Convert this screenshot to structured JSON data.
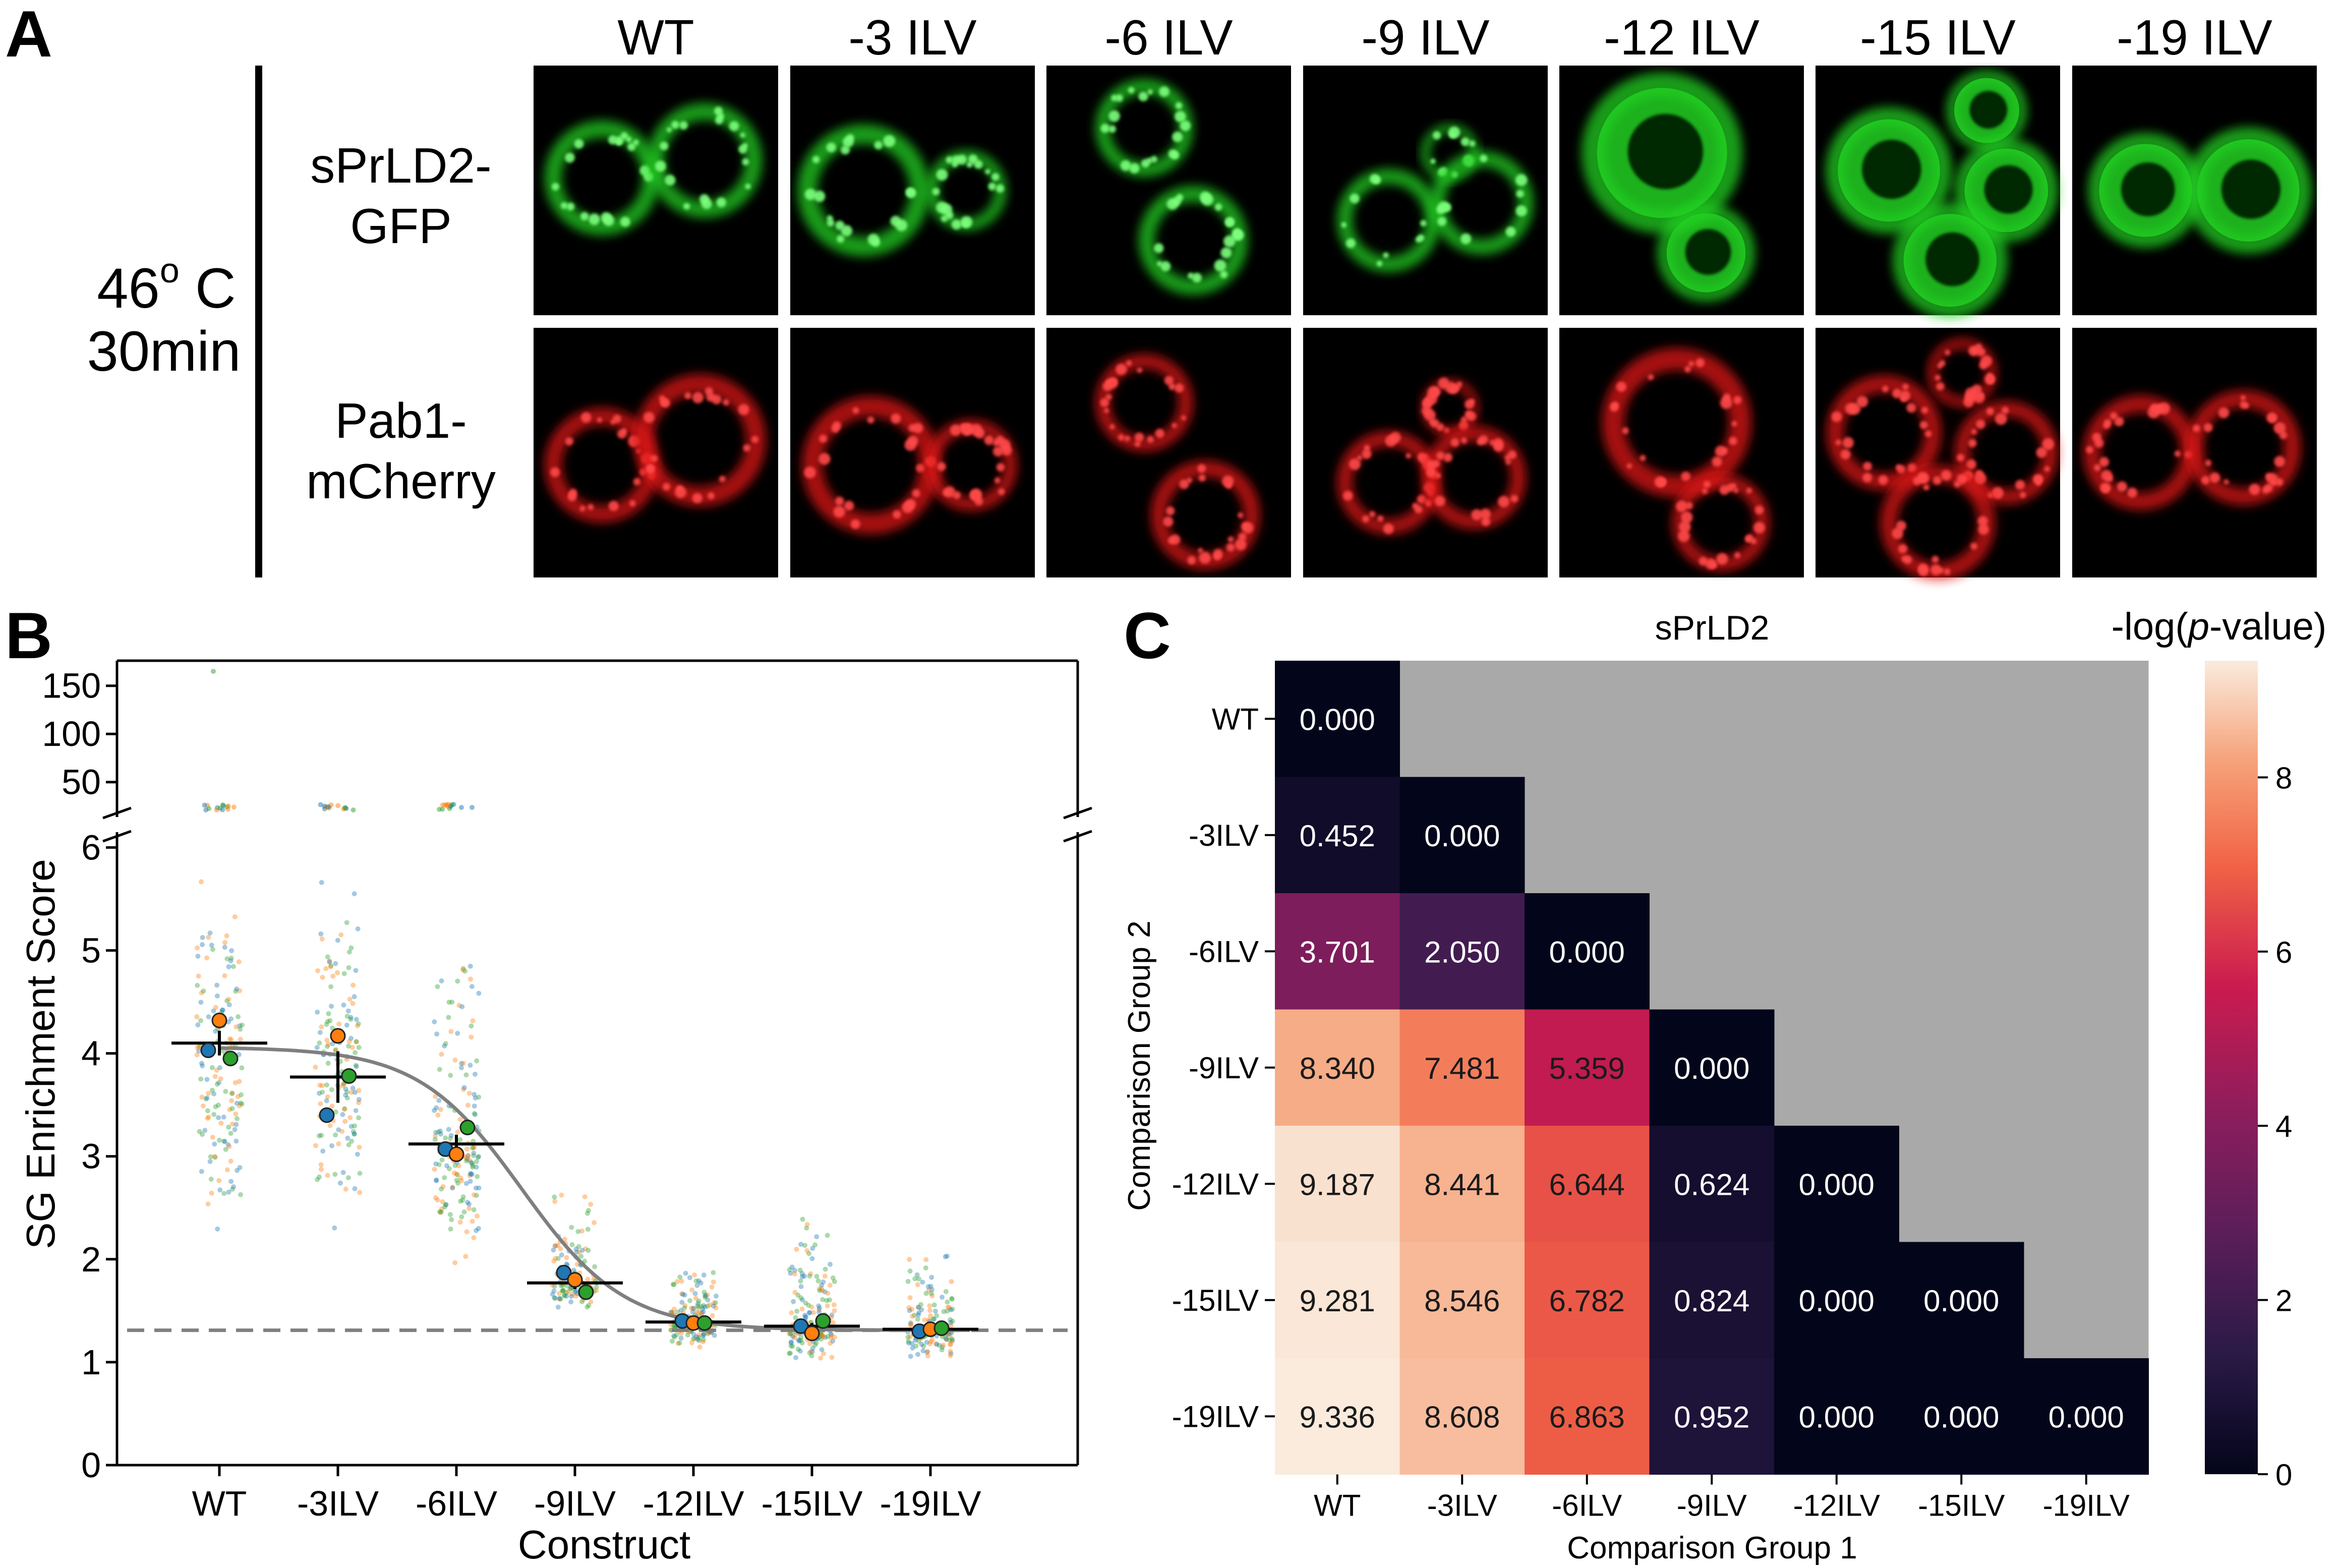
{
  "panel_a": {
    "letter": "A",
    "condition_line1_main": "46",
    "condition_line1_sup": "o",
    "condition_line1_unit": " C",
    "condition_line2": "30min",
    "row1_label_line1": "sPrLD2-",
    "row1_label_line2": "GFP",
    "row2_label_line1": "Pab1-",
    "row2_label_line2": "mCherry",
    "columns": [
      "WT",
      "-3 ILV",
      "-6 ILV",
      "-9 ILV",
      "-12 ILV",
      "-15 ILV",
      "-19 ILV"
    ],
    "colors": {
      "gfp": "#22d022",
      "mcherry": "#e01818",
      "background": "#000000"
    },
    "row1_micrographs": [
      {
        "cells": [
          [
            0.28,
            0.45,
            0.2
          ],
          [
            0.7,
            0.38,
            0.2
          ]
        ],
        "puncta": 0.8
      },
      {
        "cells": [
          [
            0.3,
            0.5,
            0.23
          ],
          [
            0.72,
            0.5,
            0.14
          ]
        ],
        "puncta": 0.85
      },
      {
        "cells": [
          [
            0.4,
            0.25,
            0.17
          ],
          [
            0.6,
            0.7,
            0.19
          ]
        ],
        "puncta": 0.85
      },
      {
        "cells": [
          [
            0.35,
            0.62,
            0.18
          ],
          [
            0.6,
            0.35,
            0.1
          ],
          [
            0.73,
            0.55,
            0.18
          ]
        ],
        "puncta": 0.25
      },
      {
        "cells": [
          [
            0.42,
            0.35,
            0.28
          ],
          [
            0.6,
            0.75,
            0.17
          ]
        ],
        "puncta": 0
      },
      {
        "cells": [
          [
            0.3,
            0.42,
            0.22
          ],
          [
            0.7,
            0.18,
            0.14
          ],
          [
            0.78,
            0.5,
            0.18
          ],
          [
            0.55,
            0.78,
            0.2
          ]
        ],
        "puncta": 0
      },
      {
        "cells": [
          [
            0.3,
            0.5,
            0.2
          ],
          [
            0.72,
            0.5,
            0.22
          ]
        ],
        "puncta": 0
      }
    ],
    "row2_micrographs": [
      {
        "cells": [
          [
            0.28,
            0.55,
            0.2
          ],
          [
            0.68,
            0.45,
            0.23
          ]
        ],
        "puncta": 1
      },
      {
        "cells": [
          [
            0.33,
            0.55,
            0.24
          ],
          [
            0.74,
            0.55,
            0.16
          ]
        ],
        "puncta": 1
      },
      {
        "cells": [
          [
            0.4,
            0.3,
            0.17
          ],
          [
            0.65,
            0.75,
            0.19
          ]
        ],
        "puncta": 1
      },
      {
        "cells": [
          [
            0.35,
            0.62,
            0.18
          ],
          [
            0.6,
            0.32,
            0.1
          ],
          [
            0.7,
            0.6,
            0.18
          ]
        ],
        "puncta": 1
      },
      {
        "cells": [
          [
            0.48,
            0.38,
            0.26
          ],
          [
            0.66,
            0.78,
            0.17
          ]
        ],
        "puncta": 1
      },
      {
        "cells": [
          [
            0.28,
            0.42,
            0.2
          ],
          [
            0.6,
            0.18,
            0.12
          ],
          [
            0.78,
            0.5,
            0.18
          ],
          [
            0.5,
            0.78,
            0.2
          ]
        ],
        "puncta": 1
      },
      {
        "cells": [
          [
            0.28,
            0.5,
            0.2
          ],
          [
            0.7,
            0.48,
            0.2
          ]
        ],
        "puncta": 1
      }
    ]
  },
  "panel_b": {
    "letter": "B"
  },
  "panel_c": {
    "letter": "C"
  },
  "chart_data": [
    {
      "panel": "B",
      "type": "scatter",
      "xlabel": "Construct",
      "ylabel": "SG Enrichment Score",
      "categories": [
        "WT",
        "-3ILV",
        "-6ILV",
        "-9ILV",
        "-12ILV",
        "-15ILV",
        "-19ILV"
      ],
      "ylim_lower": [
        0,
        6.1
      ],
      "yticks_lower": [
        0,
        1,
        2,
        3,
        4,
        5,
        6
      ],
      "ylim_upper": [
        20,
        175
      ],
      "yticks_upper": [
        50,
        100,
        150
      ],
      "broken_axis": true,
      "replicate_colors": [
        "#1f77b4",
        "#ff7f0e",
        "#2ca02c"
      ],
      "replicate_means": [
        [
          4.03,
          4.32,
          3.95
        ],
        [
          3.4,
          4.17,
          3.78
        ],
        [
          3.07,
          3.02,
          3.28
        ],
        [
          1.87,
          1.8,
          1.68
        ],
        [
          1.4,
          1.38,
          1.38
        ],
        [
          1.35,
          1.28,
          1.4
        ],
        [
          1.3,
          1.32,
          1.33
        ]
      ],
      "group_mean": [
        4.1,
        3.77,
        3.12,
        1.77,
        1.39,
        1.35,
        1.32
      ],
      "group_error": [
        0.12,
        0.25,
        0.09,
        0.06,
        0.03,
        0.03,
        0.02
      ],
      "cell_spread": [
        {
          "center": 3.9,
          "min": 1.9,
          "max": 6.0,
          "n": 160
        },
        {
          "center": 3.7,
          "min": 1.85,
          "max": 6.0,
          "n": 160
        },
        {
          "center": 3.1,
          "min": 1.75,
          "max": 5.7,
          "n": 170
        },
        {
          "center": 1.78,
          "min": 1.45,
          "max": 2.8,
          "n": 130
        },
        {
          "center": 1.4,
          "min": 1.1,
          "max": 2.05,
          "n": 170
        },
        {
          "center": 1.35,
          "min": 0.95,
          "max": 2.6,
          "n": 170
        },
        {
          "center": 1.32,
          "min": 0.98,
          "max": 2.2,
          "n": 160
        }
      ],
      "baseline": 1.31,
      "fit_curve": "sigmoid through group means"
    },
    {
      "panel": "C",
      "type": "heatmap",
      "title": "sPrLD2",
      "xlabel": "Comparison Group 1",
      "ylabel": "Comparison Group 2",
      "colorbar_label_pre": "-log(",
      "colorbar_label_italic": "p",
      "colorbar_label_post": "-value)",
      "colorbar_ticks": [
        0,
        2,
        4,
        6,
        8
      ],
      "colorbar_range": [
        0,
        9.34
      ],
      "masked_color": "#a9a9a9",
      "x_categories": [
        "WT",
        "-3ILV",
        "-6ILV",
        "-9ILV",
        "-12ILV",
        "-15ILV",
        "-19ILV"
      ],
      "y_categories": [
        "WT",
        "-3ILV",
        "-6ILV",
        "-9ILV",
        "-12ILV",
        "-15ILV",
        "-19ILV"
      ],
      "values": [
        [
          0.0,
          null,
          null,
          null,
          null,
          null,
          null
        ],
        [
          0.452,
          0.0,
          null,
          null,
          null,
          null,
          null
        ],
        [
          3.701,
          2.05,
          0.0,
          null,
          null,
          null,
          null
        ],
        [
          8.34,
          7.481,
          5.359,
          0.0,
          null,
          null,
          null
        ],
        [
          9.187,
          8.441,
          6.644,
          0.624,
          0.0,
          null,
          null
        ],
        [
          9.281,
          8.546,
          6.782,
          0.824,
          0.0,
          0.0,
          null
        ],
        [
          9.336,
          8.608,
          6.863,
          0.952,
          0.0,
          0.0,
          0.0
        ]
      ],
      "value_labels": [
        [
          "0.000"
        ],
        [
          "0.452",
          "0.000"
        ],
        [
          "3.701",
          "2.050",
          "0.000"
        ],
        [
          "8.340",
          "7.481",
          "5.359",
          "0.000"
        ],
        [
          "9.187",
          "8.441",
          "6.644",
          "0.624",
          "0.000"
        ],
        [
          "9.281",
          "8.546",
          "6.782",
          "0.824",
          "0.000",
          "0.000"
        ],
        [
          "9.336",
          "8.608",
          "6.863",
          "0.952",
          "0.000",
          "0.000",
          "0.000"
        ]
      ]
    }
  ]
}
